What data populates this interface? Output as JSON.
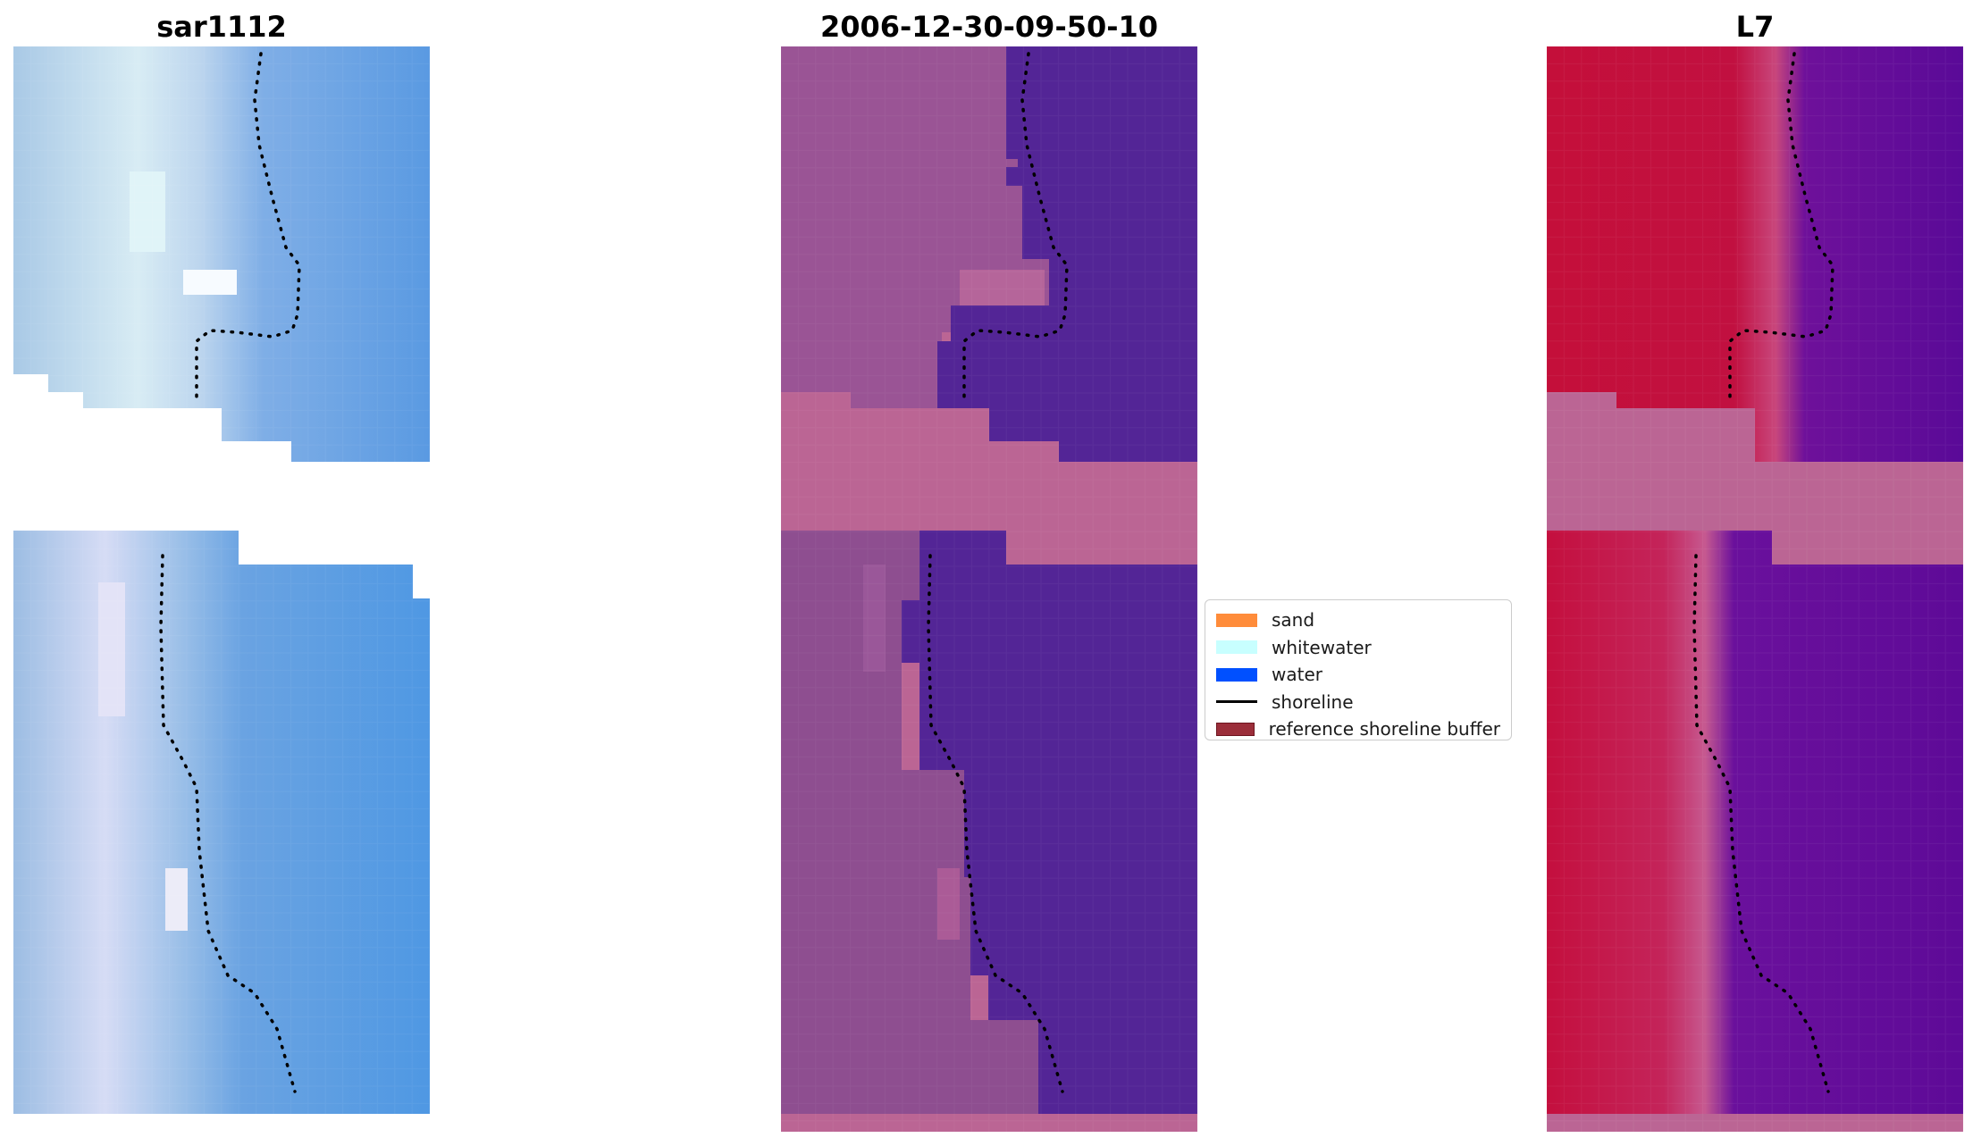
{
  "panels": [
    {
      "id": "rgb",
      "title": "sar1112"
    },
    {
      "id": "classified",
      "title": "2006-12-30-09-50-10"
    },
    {
      "id": "index",
      "title": "L7"
    }
  ],
  "legend": {
    "items": [
      {
        "label": "sand",
        "color": "#ff8c3a",
        "kind": "patch"
      },
      {
        "label": "whitewater",
        "color": "#c8ffff",
        "kind": "patch"
      },
      {
        "label": "water",
        "color": "#0050ff",
        "kind": "patch"
      },
      {
        "label": "shoreline",
        "color": "#000000",
        "kind": "line"
      },
      {
        "label": "reference shoreline buffer",
        "color": "#9b2e3a",
        "kind": "patch"
      }
    ]
  },
  "colors": {
    "rgb_water": "#5b9be0",
    "rgb_land": "#a7c6e8",
    "class_land": "#8e4e90",
    "class_water": "#532596",
    "class_nodata": "#bb6594",
    "index_land": "#c1103a",
    "index_water": "#5c0c96",
    "index_nodata": "#bb6594",
    "shoreline": "#000000"
  }
}
